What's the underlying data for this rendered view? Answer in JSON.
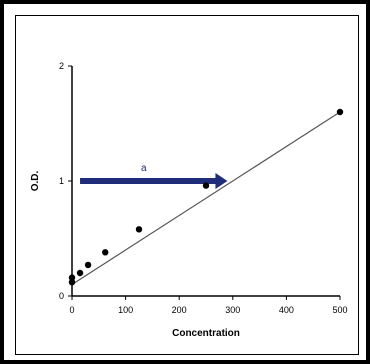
{
  "chart_data": {
    "type": "scatter",
    "title": "",
    "xlabel": "Concentration",
    "ylabel": "O.D.",
    "xlim": [
      0,
      500
    ],
    "ylim": [
      0,
      2
    ],
    "xticks": [
      0,
      100,
      200,
      300,
      400,
      500
    ],
    "yticks": [
      0,
      1,
      2
    ],
    "grid": false,
    "series": [
      {
        "points": [
          {
            "x": 0,
            "y": 0.12
          },
          {
            "x": 0,
            "y": 0.16
          },
          {
            "x": 15,
            "y": 0.2
          },
          {
            "x": 30,
            "y": 0.27
          },
          {
            "x": 62,
            "y": 0.38
          },
          {
            "x": 125,
            "y": 0.58
          },
          {
            "x": 250,
            "y": 0.96
          },
          {
            "x": 500,
            "y": 1.6
          }
        ],
        "color": "#000000"
      }
    ],
    "fit_line": {
      "x0": 0,
      "y0": 0.1,
      "x1": 500,
      "y1": 1.6,
      "color": "#555555"
    },
    "annotation": {
      "label": "a",
      "x_start": 15,
      "x_end": 290,
      "y": 1.0,
      "color": "#1f2d7a"
    }
  }
}
